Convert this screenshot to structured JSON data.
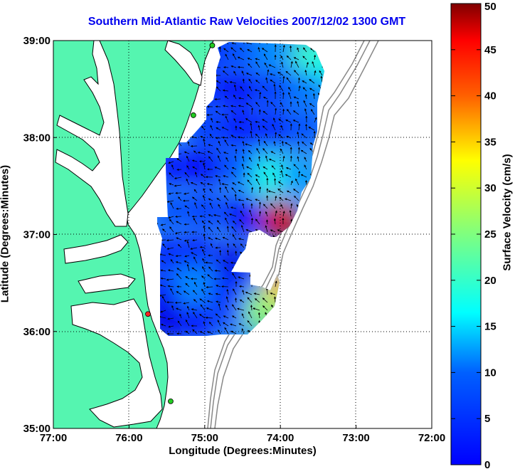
{
  "chart_data": {
    "type": "heatmap",
    "title": "Southern Mid-Atlantic Raw Velocities 2007/12/02 1300 GMT",
    "xlabel": "Longitude (Degrees:Minutes)",
    "ylabel": "Latitude (Degrees:Minutes)",
    "x_ticks": [
      "77:00",
      "76:00",
      "75:00",
      "74:00",
      "73:00",
      "72:00"
    ],
    "y_ticks": [
      "39:00",
      "38:00",
      "37:00",
      "36:00",
      "35:00"
    ],
    "xlim": [
      -77,
      -72
    ],
    "ylim": [
      35,
      39
    ],
    "grid": true,
    "colorbar": {
      "label": "Surface Velocity (cm/s)",
      "ticks": [
        "0",
        "5",
        "10",
        "15",
        "20",
        "25",
        "30",
        "35",
        "40",
        "45",
        "50"
      ],
      "range": [
        0,
        50
      ],
      "colormap": "jet"
    },
    "colors": {
      "land": "#55f5b0",
      "coast_line": "#000000",
      "bathymetry": "#888888",
      "title": "#0000ee",
      "site_active": "#22cc22",
      "site_inactive": "#ff2222"
    },
    "sites": [
      {
        "lon": -74.9,
        "lat": 38.95,
        "status": "active"
      },
      {
        "lon": -75.15,
        "lat": 38.23,
        "status": "active"
      },
      {
        "lon": -75.75,
        "lat": 36.18,
        "status": "inactive"
      },
      {
        "lon": -75.45,
        "lat": 35.28,
        "status": "active"
      }
    ],
    "velocity_field": [
      {
        "lon": -74.9,
        "lat": 38.9,
        "speed": 8
      },
      {
        "lon": -74.5,
        "lat": 38.9,
        "speed": 10
      },
      {
        "lon": -74.1,
        "lat": 38.9,
        "speed": 13
      },
      {
        "lon": -73.6,
        "lat": 38.85,
        "speed": 22
      },
      {
        "lon": -73.4,
        "lat": 38.75,
        "speed": 20
      },
      {
        "lon": -75.0,
        "lat": 38.5,
        "speed": 8
      },
      {
        "lon": -74.55,
        "lat": 38.5,
        "speed": 6
      },
      {
        "lon": -74.1,
        "lat": 38.5,
        "speed": 9
      },
      {
        "lon": -73.65,
        "lat": 38.5,
        "speed": 12
      },
      {
        "lon": -75.0,
        "lat": 38.1,
        "speed": 9
      },
      {
        "lon": -74.55,
        "lat": 38.1,
        "speed": 7
      },
      {
        "lon": -74.1,
        "lat": 38.1,
        "speed": 8
      },
      {
        "lon": -73.65,
        "lat": 38.1,
        "speed": 10
      },
      {
        "lon": -75.45,
        "lat": 37.7,
        "speed": 7
      },
      {
        "lon": -75.0,
        "lat": 37.7,
        "speed": 6
      },
      {
        "lon": -74.55,
        "lat": 37.7,
        "speed": 10
      },
      {
        "lon": -74.15,
        "lat": 37.6,
        "speed": 20
      },
      {
        "lon": -73.75,
        "lat": 37.55,
        "speed": 14
      },
      {
        "lon": -75.45,
        "lat": 37.25,
        "speed": 10
      },
      {
        "lon": -75.0,
        "lat": 37.25,
        "speed": 9
      },
      {
        "lon": -74.5,
        "lat": 37.2,
        "speed": 6
      },
      {
        "lon": -74.0,
        "lat": 37.15,
        "speed": 45
      },
      {
        "lon": -75.55,
        "lat": 36.8,
        "speed": 8
      },
      {
        "lon": -75.1,
        "lat": 36.8,
        "speed": 7
      },
      {
        "lon": -74.6,
        "lat": 36.7,
        "speed": 5
      },
      {
        "lon": -75.55,
        "lat": 36.4,
        "speed": 6
      },
      {
        "lon": -75.15,
        "lat": 36.5,
        "speed": 13
      },
      {
        "lon": -74.7,
        "lat": 36.4,
        "speed": 8
      },
      {
        "lon": -74.15,
        "lat": 36.55,
        "speed": 12
      },
      {
        "lon": -74.0,
        "lat": 36.45,
        "speed": 34
      },
      {
        "lon": -75.55,
        "lat": 36.1,
        "speed": 5
      },
      {
        "lon": -75.1,
        "lat": 36.1,
        "speed": 7
      },
      {
        "lon": -74.6,
        "lat": 36.2,
        "speed": 9
      },
      {
        "lon": -74.25,
        "lat": 36.2,
        "speed": 26
      }
    ]
  }
}
